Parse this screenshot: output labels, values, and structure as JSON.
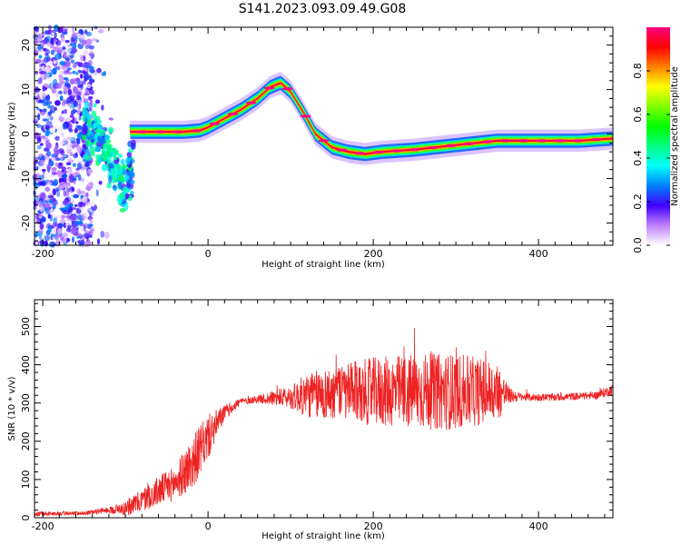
{
  "title": "S141.2023.093.09.49.G08",
  "chart_data": [
    {
      "type": "heatmap",
      "xlabel": "Height of straight line (km)",
      "ylabel": "Frequency (Hz)",
      "xlim": [
        -210,
        490
      ],
      "ylim": [
        -25,
        24
      ],
      "x_ticks": [
        -200,
        0,
        200,
        400
      ],
      "y_ticks": [
        -20,
        -10,
        0,
        10,
        20
      ],
      "colorbar": {
        "label": "Normalized spectral amplitude",
        "range": [
          0,
          1
        ],
        "ticks": [
          0.0,
          0.2,
          0.4,
          0.6,
          0.8
        ],
        "colormap": [
          "#ffffff",
          "#c080ff",
          "#4000ff",
          "#0080ff",
          "#00ffff",
          "#00ff80",
          "#00ff00",
          "#80ff00",
          "#ffff00",
          "#ff8000",
          "#ff0000",
          "#ff0080"
        ]
      },
      "ridge": {
        "x": [
          -90,
          -60,
          -30,
          -10,
          0,
          20,
          40,
          60,
          75,
          88,
          100,
          115,
          130,
          150,
          170,
          190,
          210,
          250,
          300,
          350,
          400,
          450,
          490
        ],
        "y": [
          0.5,
          0.5,
          0.5,
          0.8,
          1.5,
          3.5,
          5.5,
          8.0,
          10.5,
          11.5,
          9.5,
          5.0,
          0.0,
          -3.0,
          -4.0,
          -4.5,
          -4.0,
          -3.5,
          -2.5,
          -1.5,
          -1.5,
          -1.5,
          -1.0
        ]
      },
      "noise_region": {
        "x": [
          -210,
          -140
        ],
        "y": [
          -25,
          24
        ]
      }
    },
    {
      "type": "line",
      "xlabel": "Height of straight line (km)",
      "ylabel": "SNR (10 * v/v)",
      "xlim": [
        -210,
        490
      ],
      "ylim": [
        0,
        570
      ],
      "x_ticks": [
        -200,
        0,
        200,
        400
      ],
      "y_ticks": [
        0,
        100,
        200,
        300,
        400,
        500
      ],
      "series": [
        {
          "color": "#ee2222",
          "envelope": {
            "x": [
              -210,
              -150,
              -120,
              -100,
              -80,
              -60,
              -40,
              -20,
              0,
              20,
              40,
              60,
              100,
              120,
              150,
              200,
              250,
              300,
              350,
              365,
              380,
              420,
              470,
              490
            ],
            "y": [
              10,
              12,
              20,
              25,
              45,
              70,
              90,
              140,
              210,
              275,
              305,
              310,
              315,
              320,
              325,
              330,
              330,
              330,
              330,
              320,
              315,
              315,
              320,
              335
            ],
            "amp": [
              6,
              5,
              8,
              20,
              30,
              40,
              45,
              70,
              60,
              20,
              10,
              10,
              30,
              60,
              70,
              90,
              100,
              100,
              80,
              20,
              10,
              10,
              10,
              15
            ]
          }
        }
      ]
    }
  ]
}
